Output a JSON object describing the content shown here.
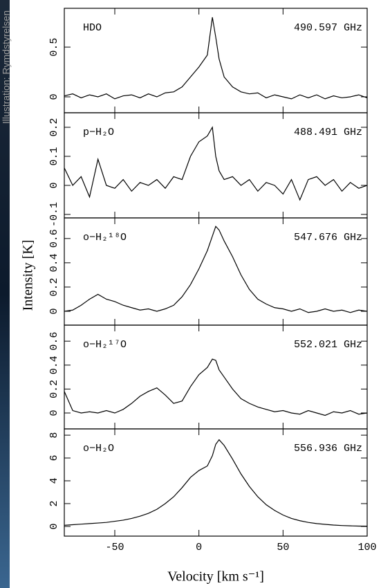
{
  "credit": "Illustration: Rymdstyrelsen",
  "shared": {
    "ylabel": "Intensity [K]",
    "xlabel": "Velocity [km s⁻¹]"
  },
  "chart_data": [
    {
      "type": "line",
      "title": "HDO",
      "subtitle": "490.597 GHz",
      "color": "#000000",
      "x": [
        -80,
        -75,
        -70,
        -65,
        -60,
        -55,
        -50,
        -45,
        -40,
        -35,
        -30,
        -25,
        -20,
        -15,
        -10,
        -5,
        0,
        5,
        8,
        10,
        12,
        15,
        20,
        25,
        30,
        35,
        40,
        45,
        50,
        55,
        60,
        65,
        70,
        75,
        80,
        85,
        90,
        95,
        100
      ],
      "values": [
        0.01,
        0.03,
        -0.01,
        0.02,
        0.0,
        0.03,
        -0.02,
        0.01,
        0.02,
        -0.01,
        0.03,
        0.0,
        0.04,
        0.05,
        0.1,
        0.2,
        0.3,
        0.42,
        0.8,
        0.6,
        0.38,
        0.2,
        0.1,
        0.05,
        0.03,
        0.04,
        -0.01,
        0.02,
        0.0,
        -0.02,
        0.02,
        -0.01,
        0.02,
        -0.02,
        0.01,
        -0.01,
        0.0,
        0.02,
        -0.01
      ],
      "xlim": [
        -80,
        100
      ],
      "xticks": [
        -50,
        0,
        50,
        100
      ],
      "ylim": [
        -0.16,
        0.89
      ],
      "yticks": [
        0,
        0.5
      ]
    },
    {
      "type": "line",
      "title": "p−H₂O",
      "subtitle": "488.491 GHz",
      "color": "#000000",
      "x": [
        -80,
        -75,
        -70,
        -65,
        -60,
        -55,
        -50,
        -45,
        -40,
        -35,
        -30,
        -25,
        -20,
        -15,
        -10,
        -5,
        0,
        5,
        8,
        10,
        12,
        15,
        20,
        25,
        30,
        35,
        40,
        45,
        50,
        55,
        60,
        65,
        70,
        75,
        80,
        85,
        90,
        95,
        100
      ],
      "values": [
        0.06,
        0.0,
        0.03,
        -0.04,
        0.09,
        0.0,
        -0.01,
        0.02,
        -0.02,
        0.01,
        0.0,
        0.02,
        -0.01,
        0.03,
        0.02,
        0.1,
        0.15,
        0.17,
        0.2,
        0.1,
        0.05,
        0.02,
        0.03,
        0.0,
        0.02,
        -0.02,
        0.01,
        0.0,
        -0.03,
        0.02,
        -0.05,
        0.02,
        0.03,
        0.0,
        0.02,
        -0.02,
        0.01,
        -0.01,
        0.0
      ],
      "xlim": [
        -80,
        100
      ],
      "xticks": [
        -50,
        0,
        50,
        100
      ],
      "ylim": [
        -0.112,
        0.25
      ],
      "yticks": [
        -0.1,
        0,
        0.1,
        0.2
      ]
    },
    {
      "type": "line",
      "title": "o−H₂¹⁸O",
      "subtitle": "547.676 GHz",
      "color": "#000000",
      "x": [
        -80,
        -75,
        -70,
        -65,
        -60,
        -55,
        -50,
        -45,
        -40,
        -35,
        -30,
        -25,
        -20,
        -15,
        -10,
        -5,
        0,
        5,
        8,
        10,
        12,
        15,
        20,
        25,
        30,
        35,
        40,
        45,
        50,
        55,
        60,
        65,
        70,
        75,
        80,
        85,
        90,
        95,
        100
      ],
      "values": [
        0.0,
        0.01,
        0.05,
        0.1,
        0.14,
        0.1,
        0.08,
        0.05,
        0.03,
        0.01,
        0.02,
        0.0,
        0.02,
        0.05,
        0.12,
        0.22,
        0.35,
        0.5,
        0.62,
        0.7,
        0.67,
        0.58,
        0.45,
        0.3,
        0.18,
        0.1,
        0.06,
        0.03,
        0.02,
        0.0,
        0.02,
        -0.01,
        0.0,
        0.02,
        0.0,
        0.01,
        -0.01,
        0.01,
        0.0
      ],
      "xlim": [
        -80,
        100
      ],
      "xticks": [
        -50,
        0,
        50,
        100
      ],
      "ylim": [
        -0.114,
        0.77
      ],
      "yticks": [
        0,
        0.2,
        0.4,
        0.6
      ]
    },
    {
      "type": "line",
      "title": "o−H₂¹⁷O",
      "subtitle": "552.021 GHz",
      "color": "#000000",
      "x": [
        -80,
        -75,
        -70,
        -65,
        -60,
        -55,
        -50,
        -45,
        -40,
        -35,
        -30,
        -25,
        -20,
        -15,
        -10,
        -5,
        0,
        5,
        8,
        10,
        12,
        15,
        20,
        25,
        30,
        35,
        40,
        45,
        50,
        55,
        60,
        65,
        70,
        75,
        80,
        85,
        90,
        95,
        100
      ],
      "values": [
        0.18,
        0.02,
        0.0,
        0.01,
        0.0,
        0.02,
        0.0,
        0.03,
        0.08,
        0.14,
        0.18,
        0.21,
        0.15,
        0.08,
        0.1,
        0.22,
        0.32,
        0.38,
        0.45,
        0.44,
        0.36,
        0.3,
        0.2,
        0.12,
        0.08,
        0.05,
        0.03,
        0.01,
        0.02,
        0.0,
        -0.01,
        0.02,
        0.0,
        -0.02,
        0.01,
        0.0,
        0.02,
        -0.01,
        0.0
      ],
      "xlim": [
        -80,
        100
      ],
      "xticks": [
        -50,
        0,
        50,
        100
      ],
      "ylim": [
        -0.133,
        0.734
      ],
      "yticks": [
        0,
        0.2,
        0.4,
        0.6
      ]
    },
    {
      "type": "line",
      "title": "o−H₂O",
      "subtitle": "556.936 GHz",
      "color": "#000000",
      "x": [
        -80,
        -75,
        -70,
        -65,
        -60,
        -55,
        -50,
        -45,
        -40,
        -35,
        -30,
        -25,
        -20,
        -15,
        -10,
        -5,
        0,
        5,
        8,
        10,
        12,
        15,
        20,
        25,
        30,
        35,
        40,
        45,
        50,
        55,
        60,
        65,
        70,
        75,
        80,
        85,
        90,
        95,
        100
      ],
      "values": [
        0.1,
        0.15,
        0.2,
        0.25,
        0.3,
        0.35,
        0.45,
        0.55,
        0.7,
        0.9,
        1.15,
        1.5,
        2.0,
        2.6,
        3.4,
        4.3,
        4.9,
        5.3,
        6.2,
        7.2,
        7.6,
        7.1,
        5.9,
        4.6,
        3.5,
        2.6,
        1.9,
        1.4,
        1.0,
        0.7,
        0.5,
        0.35,
        0.25,
        0.18,
        0.12,
        0.08,
        0.05,
        0.03,
        0.02
      ],
      "xlim": [
        -80,
        100
      ],
      "xticks": [
        -50,
        0,
        50,
        100
      ],
      "ylim": [
        -0.85,
        8.55
      ],
      "yticks": [
        0,
        2,
        4,
        6,
        8
      ]
    }
  ]
}
